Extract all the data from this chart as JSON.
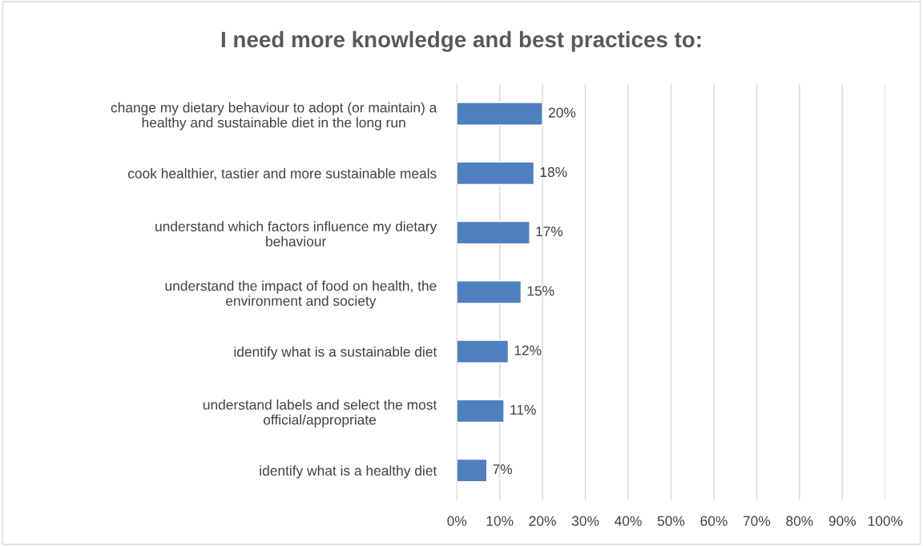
{
  "chart_data": {
    "type": "bar",
    "orientation": "horizontal",
    "title": "I need more knowledge and best practices to:",
    "categories": [
      "change my dietary behaviour to adopt (or maintain) a\nhealthy and sustainable diet in the long run",
      "cook healthier, tastier and more sustainable meals",
      "understand which factors influence my dietary\nbehaviour",
      "understand the impact of food on health, the\nenvironment and society",
      "identify what is a sustainable diet",
      "understand labels and select the most\nofficial/appropriate",
      "identify what is a healthy diet"
    ],
    "values": [
      20,
      18,
      17,
      15,
      12,
      11,
      7
    ],
    "value_labels": [
      "20%",
      "18%",
      "17%",
      "15%",
      "12%",
      "11%",
      "7%"
    ],
    "color": "#4f7fbe",
    "xlim": [
      0,
      100
    ],
    "xticks": [
      {
        "value": 0,
        "label": "0%"
      },
      {
        "value": 10,
        "label": "10%"
      },
      {
        "value": 20,
        "label": "20%"
      },
      {
        "value": 30,
        "label": "30%"
      },
      {
        "value": 40,
        "label": "40%"
      },
      {
        "value": 50,
        "label": "50%"
      },
      {
        "value": 60,
        "label": "60%"
      },
      {
        "value": 70,
        "label": "70%"
      },
      {
        "value": 80,
        "label": "80%"
      },
      {
        "value": 90,
        "label": "90%"
      },
      {
        "value": 100,
        "label": "100%"
      }
    ],
    "grid": "x",
    "legend": false
  }
}
